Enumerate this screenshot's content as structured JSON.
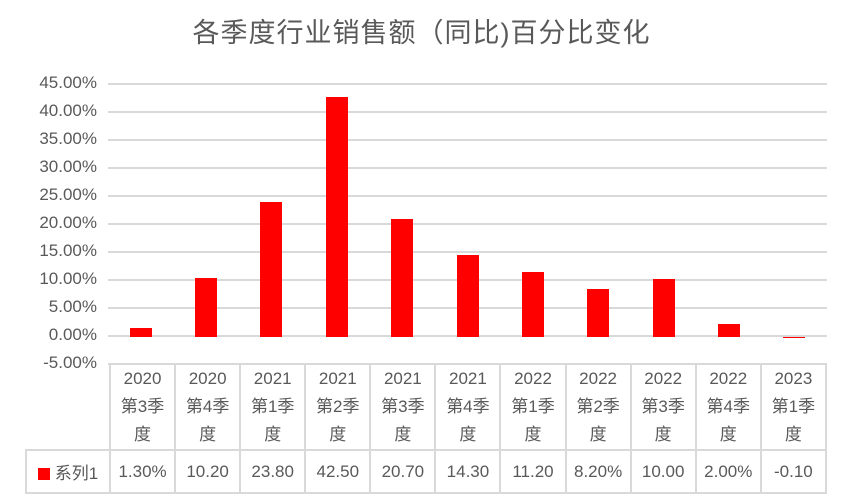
{
  "title": "各季度行业销售额（同比)百分比变化",
  "colors": {
    "bar": "#ff0000",
    "gridline": "#d9d9d9",
    "text": "#595959",
    "table_border": "#d9d9d9",
    "background": "#ffffff"
  },
  "y_axis": {
    "tick_labels": [
      "45.00%",
      "40.00%",
      "35.00%",
      "30.00%",
      "25.00%",
      "20.00%",
      "15.00%",
      "10.00%",
      "5.00%",
      "0.00%",
      "-5.00%"
    ]
  },
  "legend": {
    "series_label": "系列1",
    "marker_color": "#ff0000"
  },
  "table": {
    "header_labels": [
      "2020\n第3季\n度",
      "2020\n第4季\n度",
      "2021\n第1季\n度",
      "2021\n第2季\n度",
      "2021\n第3季\n度",
      "2021\n第4季\n度",
      "2022\n第1季\n度",
      "2022\n第2季\n度",
      "2022\n第3季\n度",
      "2022\n第4季\n度",
      "2023\n第1季\n度"
    ],
    "display_values": [
      "1.30%",
      "10.20",
      "23.80",
      "42.50",
      "20.70",
      "14.30",
      "11.20",
      "8.20%",
      "10.00",
      "2.00%",
      "-0.10"
    ]
  },
  "chart_data": {
    "type": "bar",
    "title": "各季度行业销售额（同比)百分比变化",
    "categories": [
      "2020第3季度",
      "2020第4季度",
      "2021第1季度",
      "2021第2季度",
      "2021第3季度",
      "2021第4季度",
      "2022第1季度",
      "2022第2季度",
      "2022第3季度",
      "2022第4季度",
      "2023第1季度"
    ],
    "series": [
      {
        "name": "系列1",
        "values": [
          1.3,
          10.2,
          23.8,
          42.5,
          20.7,
          14.3,
          11.2,
          8.2,
          10.0,
          2.0,
          -0.1
        ]
      }
    ],
    "xlabel": "",
    "ylabel": "",
    "ylim": [
      -5,
      45
    ],
    "y_tick_step": 5,
    "unit": "%",
    "grid": true,
    "bar_color": "#ff0000",
    "legend_position": "bottom-data-table"
  }
}
